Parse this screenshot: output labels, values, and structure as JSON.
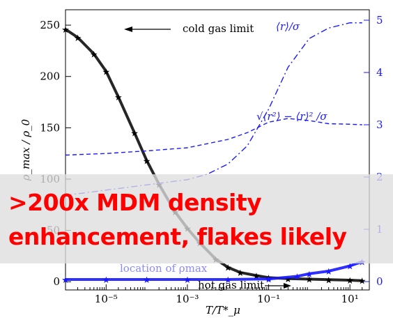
{
  "chart_data": {
    "type": "line",
    "x_scale": "log",
    "xlim": [
      1e-06,
      30
    ],
    "ylim_left": [
      -8,
      265
    ],
    "ylim_right": [
      -0.16,
      5.2
    ],
    "xlabel": "T/T*_μ",
    "ylabel_left": "ρ_max / ρ_0",
    "x_ticks": [
      "10⁻⁵",
      "10⁻³",
      "10⁻¹",
      "10¹"
    ],
    "y_ticks_left": [
      "0",
      "50",
      "100",
      "150",
      "200",
      "250"
    ],
    "y_ticks_right": [
      "0",
      "1",
      "2",
      "3",
      "4",
      "5"
    ],
    "colors": {
      "density": "#000000",
      "blue": "#1a1aff",
      "banner_text": "#ff0000"
    },
    "series": [
      {
        "name": "ρmax/ρ0",
        "axis": "left",
        "style": "stars",
        "x": [
          1e-06,
          2e-06,
          5e-06,
          1e-05,
          2e-05,
          5e-05,
          0.0001,
          0.0002,
          0.0005,
          0.001,
          0.002,
          0.005,
          0.01,
          0.02,
          0.05,
          0.1,
          0.3,
          1,
          3,
          10,
          20
        ],
        "y": [
          246,
          238,
          222,
          205,
          180,
          145,
          118,
          95,
          68,
          52,
          38,
          22,
          14,
          9,
          6,
          4,
          3,
          2.5,
          2,
          1.5,
          1
        ]
      },
      {
        "name": "⟨r⟩/σ",
        "axis": "right",
        "style": "dash-dot",
        "x": [
          1e-06,
          1e-05,
          0.0001,
          0.001,
          0.003,
          0.01,
          0.03,
          0.1,
          0.3,
          1,
          3,
          10,
          20
        ],
        "y": [
          1.65,
          1.75,
          1.85,
          1.95,
          2.05,
          2.25,
          2.6,
          3.3,
          4.1,
          4.65,
          4.85,
          4.95,
          4.95
        ]
      },
      {
        "name": "√(⟨r²⟩ − ⟨r⟩²)/σ",
        "axis": "right",
        "style": "dashed",
        "x": [
          1e-06,
          1e-05,
          0.0001,
          0.001,
          0.01,
          0.03,
          0.1,
          0.3,
          1,
          3,
          10,
          20
        ],
        "y": [
          2.42,
          2.45,
          2.5,
          2.56,
          2.72,
          2.85,
          3.05,
          3.12,
          3.08,
          3.02,
          3.01,
          3.0
        ]
      },
      {
        "name": "location of ρmax",
        "axis": "right",
        "style": "stars",
        "x": [
          1e-06,
          1e-05,
          0.0001,
          0.001,
          0.01,
          0.1,
          0.5,
          1,
          3,
          10,
          20
        ],
        "y": [
          0.04,
          0.04,
          0.04,
          0.04,
          0.04,
          0.05,
          0.1,
          0.15,
          0.2,
          0.3,
          0.38
        ]
      }
    ],
    "annotations": {
      "cold": "cold gas limit",
      "hot": "hot gas limit",
      "location": "location of ρmax",
      "mean_r": "⟨r⟩/σ",
      "std_r": "√⟨r²⟩ − ⟨r⟩² /σ"
    }
  },
  "banner": {
    "line1": ">200x MDM density",
    "line2": "enhancement, flakes likely"
  }
}
